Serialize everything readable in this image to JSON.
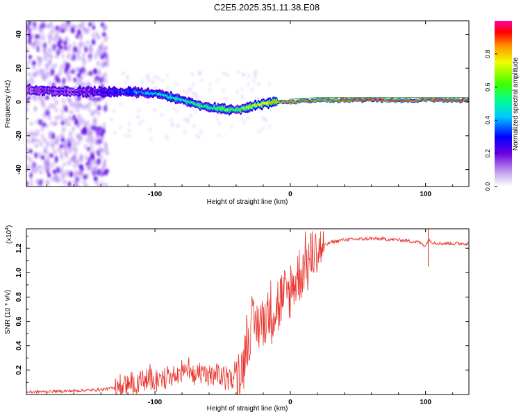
{
  "title": "C2E5.2025.351.11.38.E08",
  "colors": {
    "snr_line": "#e8312a",
    "ridge": "#2e8b2e",
    "scatter": "#8a3cf0",
    "background": "#ffffff"
  },
  "chart_data": [
    {
      "type": "heatmap",
      "title": "C2E5.2025.351.11.38.E08",
      "xlabel": "Height of straight line (km)",
      "ylabel": "Frequency (Hz)",
      "xlim": [
        -195,
        132
      ],
      "ylim": [
        -50,
        48
      ],
      "xticks": [
        "-100",
        "0",
        "100"
      ],
      "xtick_values": [
        -100,
        0,
        100
      ],
      "yticks": [
        "-40",
        "-20",
        "0",
        "20",
        "40"
      ],
      "ytick_values": [
        -40,
        -20,
        0,
        20,
        40
      ],
      "colorbar": {
        "label": "Normalized spectral amplitude",
        "ticks": [
          "0.0",
          "0.2",
          "0.4",
          "0.6",
          "0.8"
        ],
        "tick_values": [
          0.0,
          0.2,
          0.4,
          0.6,
          0.8
        ],
        "range": [
          0,
          1
        ]
      },
      "ridge": {
        "x": [
          -195,
          -180,
          -160,
          -140,
          -120,
          -100,
          -90,
          -80,
          -70,
          -60,
          -50,
          -40,
          -30,
          -20,
          -10,
          0,
          10,
          20,
          40,
          60,
          80,
          100,
          132
        ],
        "y": [
          7,
          7,
          6,
          6,
          6,
          5,
          3,
          1,
          -1,
          -3,
          -4,
          -5,
          -3,
          -1,
          0,
          0,
          0.5,
          1,
          1,
          1,
          1,
          1,
          1
        ],
        "amplitude": [
          0.15,
          0.2,
          0.2,
          0.25,
          0.35,
          0.45,
          0.5,
          0.5,
          0.55,
          0.55,
          0.65,
          0.6,
          0.7,
          0.75,
          0.85,
          0.9,
          0.9,
          0.85,
          0.9,
          0.95,
          0.95,
          0.95,
          0.95
        ]
      }
    },
    {
      "type": "line",
      "xlabel": "Height of straight line (km)",
      "ylabel": "SNR (10 * v/v)",
      "y_multiplier": "(x10",
      "y_multiplier_exp": "4",
      "y_multiplier_close": ")",
      "xlim": [
        -195,
        132
      ],
      "ylim": [
        0,
        1.36
      ],
      "xticks": [
        "-100",
        "0",
        "100"
      ],
      "xtick_values": [
        -100,
        0,
        100
      ],
      "yticks": [
        "0.2",
        "0.4",
        "0.6",
        "0.8",
        "1.0",
        "1.2"
      ],
      "ytick_values": [
        0.2,
        0.4,
        0.6,
        0.8,
        1.0,
        1.2
      ],
      "series": [
        {
          "name": "SNR",
          "x": [
            -195,
            -160,
            -140,
            -125,
            -110,
            -100,
            -90,
            -80,
            -70,
            -60,
            -50,
            -42,
            -36,
            -32,
            -28,
            -24,
            -20,
            -15,
            -10,
            -5,
            0,
            5,
            10,
            15,
            20,
            25,
            30,
            40,
            60,
            80,
            95,
            100,
            102,
            105,
            110,
            120,
            132
          ],
          "y": [
            0.02,
            0.03,
            0.04,
            0.06,
            0.1,
            0.12,
            0.16,
            0.18,
            0.17,
            0.15,
            0.14,
            0.12,
            0.2,
            0.45,
            0.55,
            0.58,
            0.62,
            0.68,
            0.72,
            0.78,
            0.85,
            0.95,
            1.05,
            1.12,
            1.18,
            1.22,
            1.25,
            1.27,
            1.28,
            1.27,
            1.25,
            1.22,
            1.27,
            1.25,
            1.24,
            1.24,
            1.24
          ]
        }
      ]
    }
  ]
}
